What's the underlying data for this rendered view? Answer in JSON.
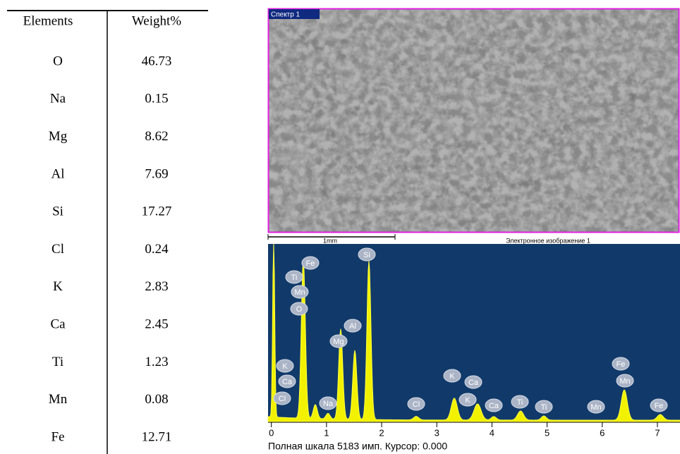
{
  "table": {
    "headers": [
      "Elements",
      "Weight%"
    ],
    "rows": [
      [
        "O",
        46.73
      ],
      [
        "Na",
        0.15
      ],
      [
        "Mg",
        8.62
      ],
      [
        "Al",
        7.69
      ],
      [
        "Si",
        17.27
      ],
      [
        "Cl",
        0.24
      ],
      [
        "K",
        2.83
      ],
      [
        "Ca",
        2.45
      ],
      [
        "Ti",
        1.23
      ],
      [
        "Mn",
        0.08
      ],
      [
        "Fe",
        12.71
      ]
    ]
  },
  "image": {
    "label": "Спектр 1",
    "scale_bar": "1mm",
    "caption": "Электронное изображение 1"
  },
  "spectrum": {
    "peak_labels": [
      "Fe",
      "Ti",
      "Mn",
      "O",
      "Si",
      "Al",
      "Mg",
      "K",
      "Ca",
      "Cl",
      "Na",
      "Cl",
      "K",
      "Ca",
      "K",
      "Ca",
      "Ti",
      "Ti",
      "Mn",
      "Fe",
      "Mn",
      "Fe"
    ],
    "xlim": [
      -0.06,
      7.41
    ],
    "xticks": [
      0,
      1,
      2,
      3,
      4,
      5,
      6,
      7
    ],
    "footer": "Полная шкала 5183 имп. Курсор: 0.000"
  }
}
